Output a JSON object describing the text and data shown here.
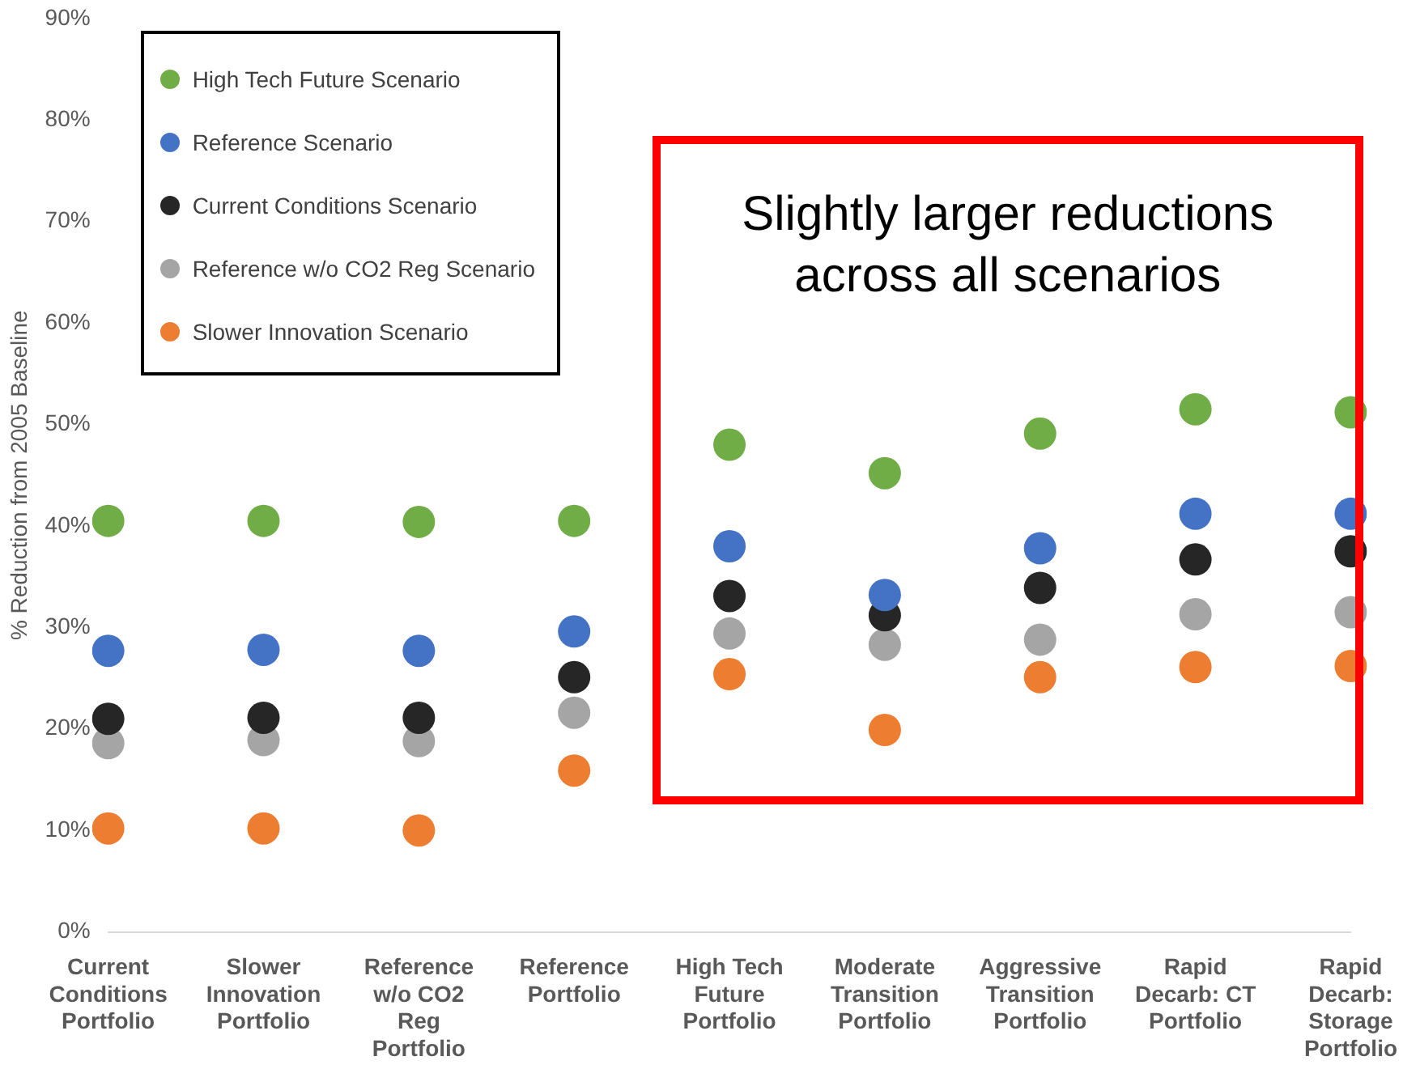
{
  "chart_data": {
    "type": "scatter",
    "ylabel": "% Reduction from 2005 Baseline",
    "categories": [
      "Current Conditions Portfolio",
      "Slower Innovation Portfolio",
      "Reference w/o CO2 Reg Portfolio",
      "Reference Portfolio",
      "High Tech Future Portfolio",
      "Moderate Transition Portfolio",
      "Aggressive Transition Portfolio",
      "Rapid Decarb: CT Portfolio",
      "Rapid Decarb: Storage Portfolio"
    ],
    "series": [
      {
        "name": "High Tech Future Scenario",
        "color": "#70ad47",
        "values": [
          40.5,
          40.5,
          40.4,
          40.5,
          48.0,
          45.2,
          49.1,
          51.5,
          51.2
        ]
      },
      {
        "name": "Reference Scenario",
        "color": "#4472c4",
        "values": [
          27.7,
          27.8,
          27.7,
          29.6,
          38.0,
          33.2,
          37.8,
          41.2,
          41.2
        ]
      },
      {
        "name": "Current Conditions Scenario",
        "color": "#262626",
        "values": [
          21.0,
          21.1,
          21.1,
          25.1,
          33.1,
          31.2,
          33.9,
          36.7,
          37.5
        ]
      },
      {
        "name": "Reference w/o CO2 Reg Scenario",
        "color": "#a5a5a5",
        "values": [
          18.6,
          18.9,
          18.8,
          21.6,
          29.4,
          28.3,
          28.8,
          31.3,
          31.5
        ]
      },
      {
        "name": "Slower Innovation Scenario",
        "color": "#ed7d31",
        "values": [
          10.2,
          10.2,
          10.0,
          15.9,
          25.4,
          19.9,
          25.1,
          26.1,
          26.2
        ]
      }
    ],
    "ylim": [
      0,
      90
    ],
    "yticks": [
      {
        "value": 0,
        "label": "0%"
      },
      {
        "value": 10,
        "label": "10%"
      },
      {
        "value": 20,
        "label": "20%"
      },
      {
        "value": 30,
        "label": "30%"
      },
      {
        "value": 40,
        "label": "40%"
      },
      {
        "value": 50,
        "label": "50%"
      },
      {
        "value": 60,
        "label": "60%"
      },
      {
        "value": 70,
        "label": "70%"
      },
      {
        "value": 80,
        "label": "80%"
      },
      {
        "value": 90,
        "label": "90%"
      }
    ],
    "grid": false,
    "legend": "top left",
    "marker": "circle",
    "annotations": [
      "Slightly larger reductions across all scenarios"
    ]
  }
}
